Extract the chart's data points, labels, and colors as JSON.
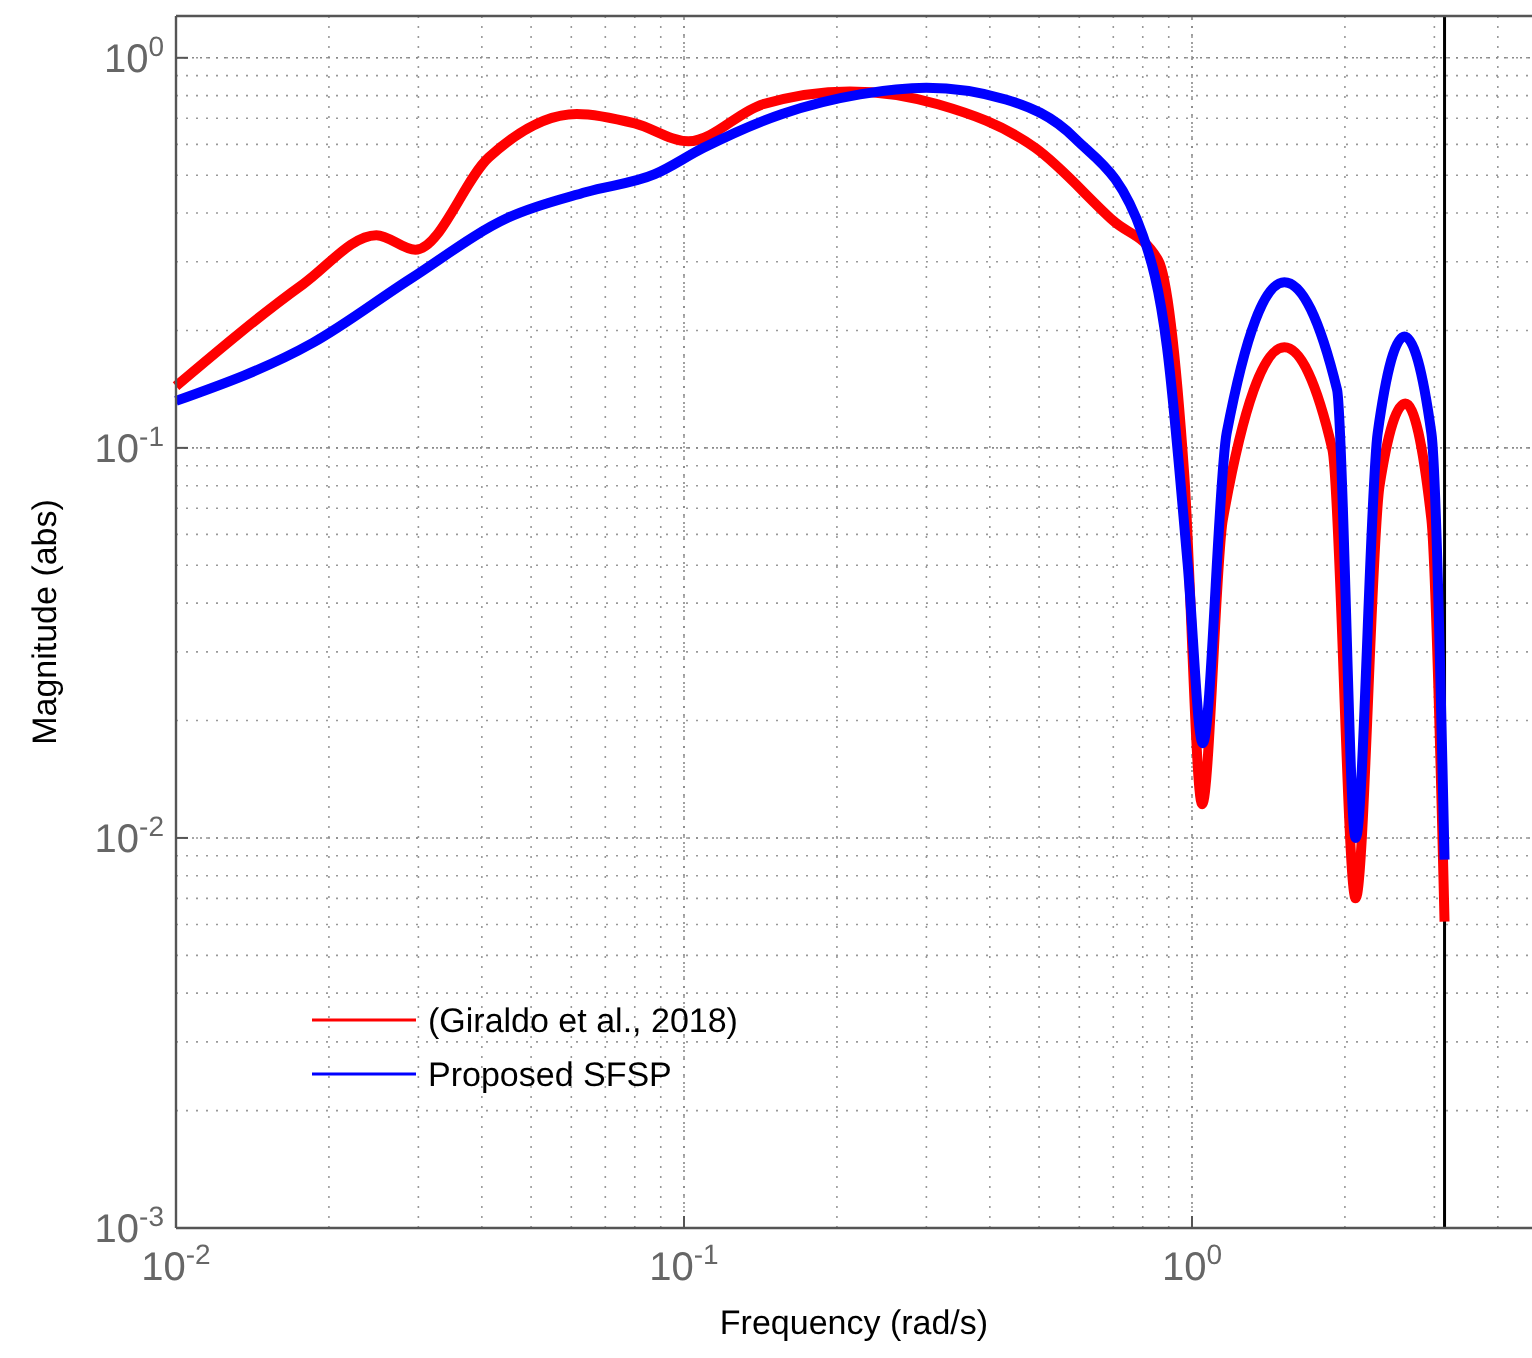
{
  "chart_data": {
    "type": "line",
    "xlabel": "Frequency (rad/s)",
    "ylabel": "Magnitude (abs)",
    "log": "xy",
    "grid": true,
    "legend": "bottom left",
    "line_style": "solid",
    "marker": "none",
    "xlim": [
      0.01,
      4.67
    ],
    "ylim": [
      0.001,
      1.28
    ],
    "xticks": [
      {
        "value": 0.01,
        "label": "10$^{-2}$"
      },
      {
        "value": 0.1,
        "label": "10$^{-1}$"
      },
      {
        "value": 1,
        "label": "10$^{0}$"
      }
    ],
    "yticks": [
      {
        "value": 0.001,
        "label": "10$^{-3}$"
      },
      {
        "value": 0.01,
        "label": "10$^{-2}$"
      },
      {
        "value": 0.1,
        "label": "10$^{-1}$"
      },
      {
        "value": 1,
        "label": "10$^{0}$"
      }
    ],
    "ref_lines": [
      {
        "axis": "x",
        "value": 3.1416,
        "label": null,
        "color": "#000000"
      }
    ],
    "series": [
      {
        "name": "(Giraldo et al., 2018)",
        "color": "#ff0000",
        "x": [
          0.01,
          0.0178,
          0.0248,
          0.0296,
          0.0413,
          0.0615,
          0.08,
          0.102,
          0.143,
          0.212,
          0.316,
          0.492,
          0.7,
          0.859,
          0.966,
          1.047,
          1.15,
          1.52,
          1.89,
          2.1,
          2.34,
          2.63,
          2.96,
          3.1416
        ],
        "values": [
          0.144,
          0.263,
          0.351,
          0.322,
          0.556,
          0.718,
          0.679,
          0.611,
          0.76,
          0.82,
          0.76,
          0.587,
          0.382,
          0.302,
          0.0845,
          0.0122,
          0.0655,
          0.181,
          0.099,
          0.007,
          0.08,
          0.13,
          0.0655,
          0.0061
        ]
      },
      {
        "name": "Proposed SFSP",
        "color": "#0000ff",
        "x": [
          0.01,
          0.0186,
          0.0289,
          0.045,
          0.0642,
          0.0876,
          0.109,
          0.156,
          0.222,
          0.3,
          0.43,
          0.588,
          0.8,
          0.893,
          0.98,
          1.05,
          1.17,
          1.52,
          1.93,
          2.1,
          2.32,
          2.62,
          2.96,
          3.1416
        ],
        "values": [
          0.132,
          0.186,
          0.271,
          0.389,
          0.453,
          0.503,
          0.587,
          0.718,
          0.806,
          0.838,
          0.782,
          0.622,
          0.351,
          0.181,
          0.0508,
          0.0175,
          0.109,
          0.266,
          0.141,
          0.01,
          0.109,
          0.193,
          0.109,
          0.0088
        ]
      }
    ]
  }
}
